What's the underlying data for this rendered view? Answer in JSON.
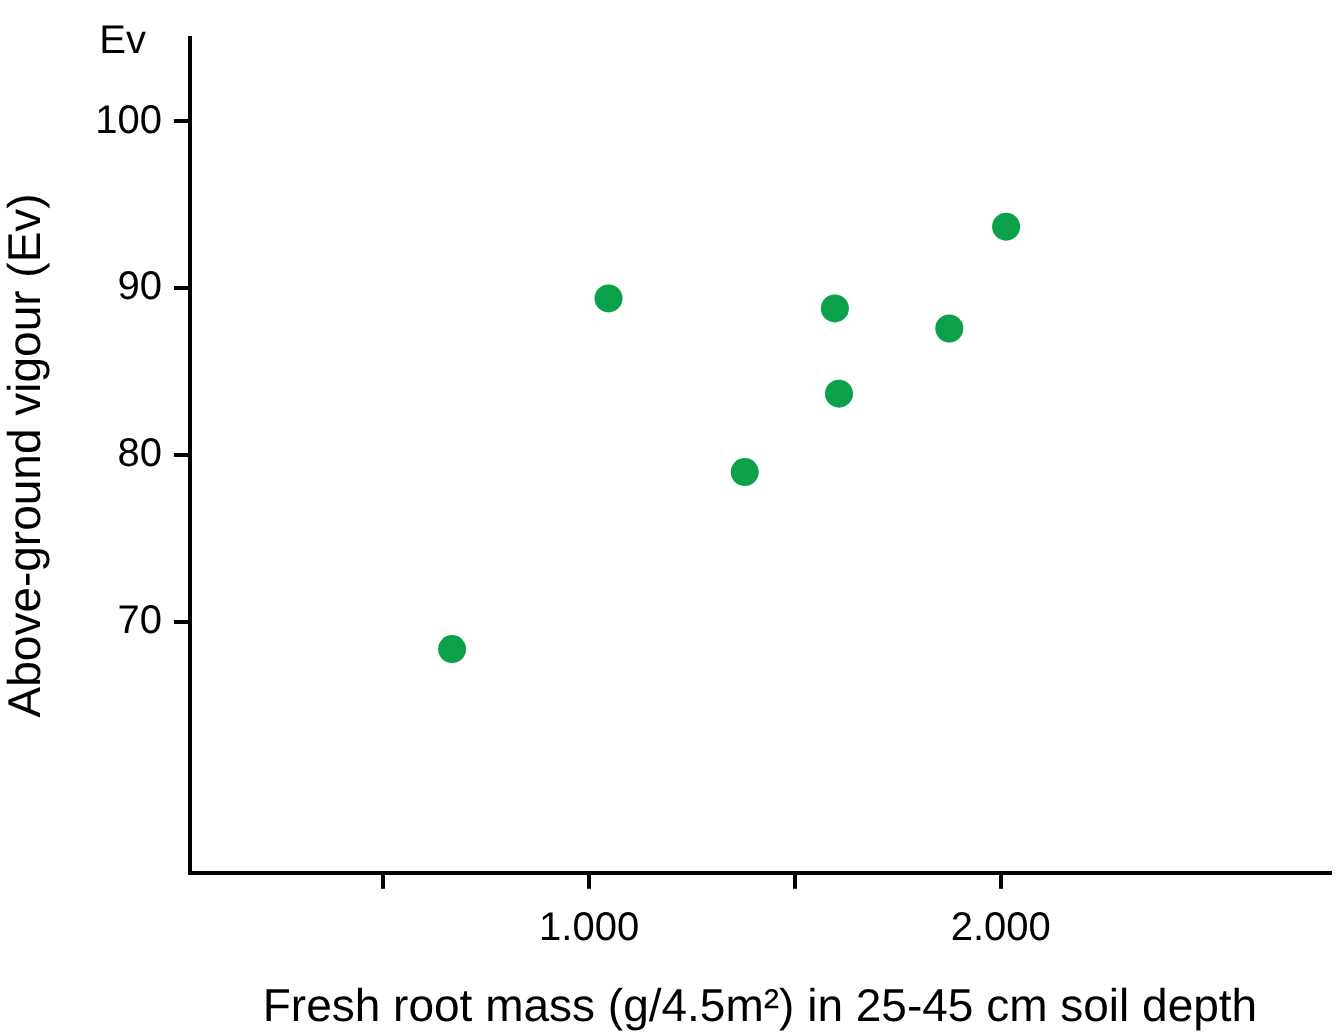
{
  "chart_data": {
    "type": "scatter",
    "xlabel": "Fresh root mass (g/4.5m²) in 25-45 cm soil depth",
    "ylabel": "Above-ground vigour (Ev)",
    "annotations": [
      "Ev"
    ],
    "x": [
      0.667,
      1.047,
      1.378,
      1.597,
      1.607,
      1.875,
      2.013
    ],
    "series": [
      {
        "color": "#0ba04a",
        "values": [
          68.4,
          89.4,
          79.0,
          88.8,
          83.7,
          87.6,
          93.7
        ]
      }
    ],
    "xlim": [
      0.03,
      2.8
    ],
    "xticks": [
      {
        "value": 0.5,
        "label": null
      },
      {
        "value": 1,
        "label": "1.000"
      },
      {
        "value": 1.5,
        "label": null
      },
      {
        "value": 2,
        "label": "2.000"
      }
    ],
    "ylim": [
      55,
      105
    ],
    "yticks": [
      70,
      80,
      90,
      100
    ],
    "grid": false,
    "legend": false,
    "marker": "circle"
  }
}
